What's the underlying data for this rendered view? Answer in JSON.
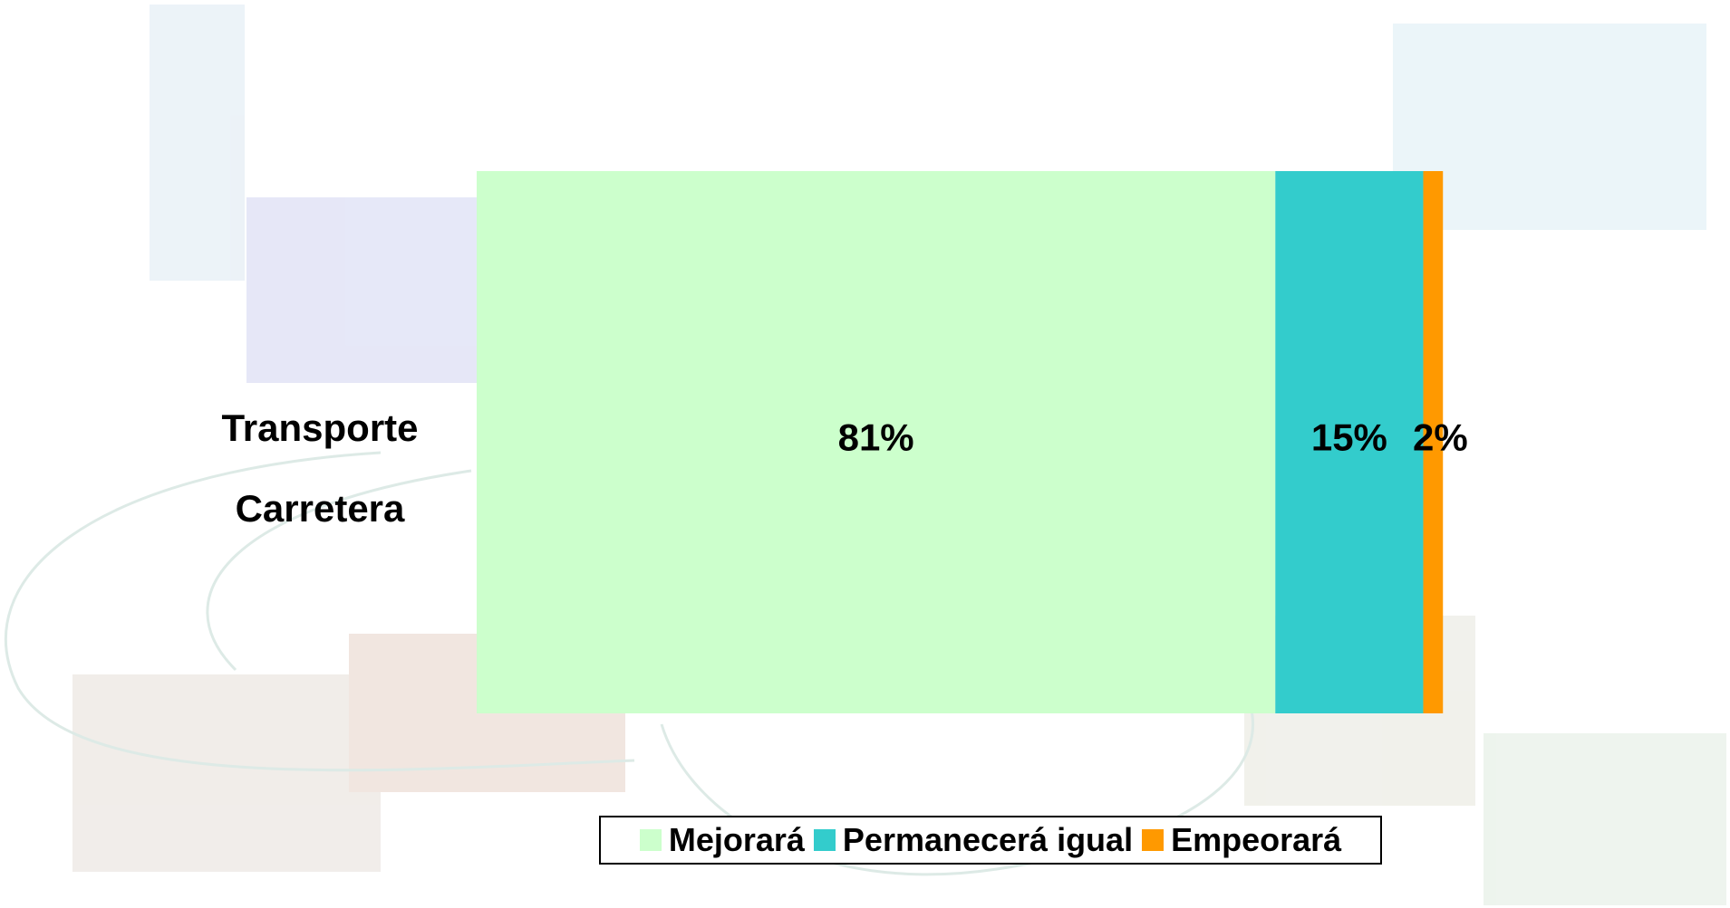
{
  "chart_data": {
    "type": "stacked-bar-horizontal",
    "categories": [
      "Transporte Carretera"
    ],
    "series": [
      {
        "name": "Mejorará",
        "color": "#ccffcc",
        "values": [
          81
        ],
        "value_labels": [
          "81%"
        ]
      },
      {
        "name": "Permanecerá igual",
        "color": "#33cccc",
        "values": [
          15
        ],
        "value_labels": [
          "15%"
        ]
      },
      {
        "name": "Empeorará",
        "color": "#ff9900",
        "values": [
          2
        ],
        "value_labels": [
          "2%"
        ]
      }
    ],
    "xlim": [
      0,
      100
    ],
    "legend": "bottom"
  }
}
